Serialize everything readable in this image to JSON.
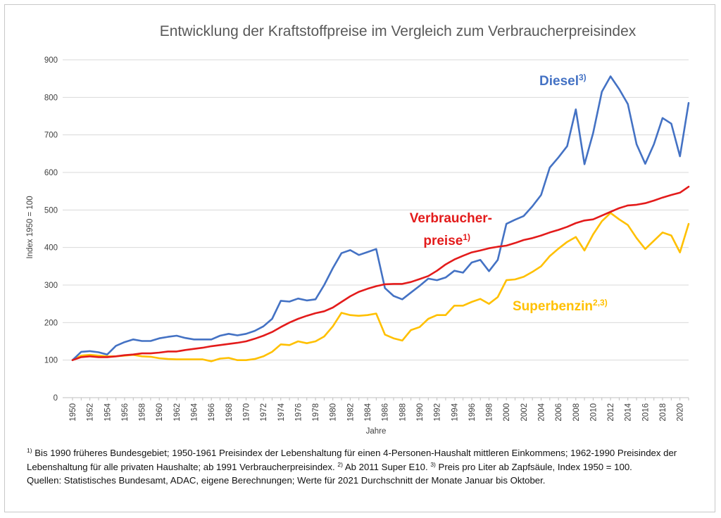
{
  "chart_data": {
    "type": "line",
    "title": "Entwicklung der Kraftstoffpreise im Vergleich zum Verbraucherpreisindex",
    "xlabel": "Jahre",
    "ylabel": "Index 1950 = 100",
    "ylim": [
      0,
      900
    ],
    "yticks": [
      0,
      100,
      200,
      300,
      400,
      500,
      600,
      700,
      800,
      900
    ],
    "xticks": [
      1950,
      1952,
      1954,
      1956,
      1958,
      1960,
      1962,
      1964,
      1966,
      1968,
      1970,
      1972,
      1974,
      1976,
      1978,
      1980,
      1982,
      1984,
      1986,
      1988,
      1990,
      1992,
      1994,
      1996,
      1998,
      2000,
      2002,
      2004,
      2006,
      2008,
      2010,
      2012,
      2014,
      2016,
      2018,
      2020
    ],
    "grid": true,
    "legend": "inline labels",
    "x": [
      1950,
      1951,
      1952,
      1953,
      1954,
      1955,
      1956,
      1957,
      1958,
      1959,
      1960,
      1961,
      1962,
      1963,
      1964,
      1965,
      1966,
      1967,
      1968,
      1969,
      1970,
      1971,
      1972,
      1973,
      1974,
      1975,
      1976,
      1977,
      1978,
      1979,
      1980,
      1981,
      1982,
      1983,
      1984,
      1985,
      1986,
      1987,
      1988,
      1989,
      1990,
      1991,
      1992,
      1993,
      1994,
      1995,
      1996,
      1997,
      1998,
      1999,
      2000,
      2001,
      2002,
      2003,
      2004,
      2005,
      2006,
      2007,
      2008,
      2009,
      2010,
      2011,
      2012,
      2013,
      2014,
      2015,
      2016,
      2017,
      2018,
      2019,
      2020,
      2021
    ],
    "series": [
      {
        "name": "Diesel",
        "sup": "3)",
        "color": "#4472C4",
        "values": [
          100,
          122,
          124,
          121,
          115,
          138,
          148,
          155,
          151,
          151,
          158,
          162,
          165,
          159,
          155,
          155,
          155,
          165,
          170,
          166,
          170,
          178,
          190,
          210,
          258,
          256,
          264,
          259,
          262,
          300,
          345,
          385,
          393,
          380,
          388,
          396,
          292,
          271,
          262,
          280,
          298,
          317,
          313,
          320,
          338,
          333,
          360,
          367,
          337,
          367,
          463,
          474,
          484,
          510,
          540,
          613,
          640,
          670,
          768,
          622,
          705,
          815,
          856,
          822,
          782,
          675,
          623,
          675,
          745,
          730,
          643,
          785
        ]
      },
      {
        "name": "Verbraucher-preise",
        "line1": "Verbraucher-",
        "line2": "preise",
        "sup": "1)",
        "color": "#E31B1B",
        "values": [
          100,
          108,
          110,
          108,
          108,
          110,
          113,
          115,
          118,
          118,
          120,
          123,
          123,
          127,
          130,
          133,
          137,
          140,
          143,
          146,
          150,
          157,
          165,
          175,
          188,
          200,
          210,
          218,
          225,
          230,
          240,
          255,
          270,
          282,
          290,
          297,
          302,
          303,
          303,
          308,
          316,
          324,
          338,
          355,
          368,
          378,
          387,
          392,
          398,
          402,
          405,
          412,
          420,
          425,
          432,
          440,
          447,
          455,
          465,
          472,
          475,
          485,
          495,
          505,
          512,
          514,
          518,
          525,
          533,
          540,
          546,
          562
        ]
      },
      {
        "name": "Superbenzin",
        "sup": "2,3)",
        "color": "#FFC000",
        "values": [
          100,
          112,
          114,
          112,
          110,
          110,
          112,
          114,
          110,
          109,
          105,
          103,
          102,
          102,
          102,
          102,
          97,
          104,
          106,
          100,
          100,
          103,
          110,
          122,
          142,
          140,
          150,
          145,
          150,
          163,
          190,
          226,
          220,
          218,
          220,
          224,
          168,
          158,
          152,
          180,
          188,
          210,
          220,
          220,
          245,
          245,
          255,
          263,
          250,
          268,
          313,
          315,
          322,
          335,
          350,
          377,
          397,
          415,
          428,
          392,
          435,
          470,
          492,
          475,
          460,
          425,
          396,
          418,
          440,
          432,
          387,
          463
        ]
      }
    ]
  },
  "footnotes": {
    "fn1_mark": "1)",
    "fn1_text": " Bis 1990 früheres Bundesgebiet; 1950-1961 Preisindex der Lebenshaltung für einen 4-Personen-Haushalt mittleren Einkommens; 1962-1990 Preisindex der Lebenshaltung  für alle privaten Haushalte; ab 1991 Verbraucherpreisindex. ",
    "fn2_mark": "2)",
    "fn2_text": " Ab 2011 Super E10. ",
    "fn3_mark": "3)",
    "fn3_text": " Preis pro Liter ab Zapfsäule, Index 1950 = 100.",
    "sources": "Quellen: Statistisches Bundesamt, ADAC, eigene Berechnungen; Werte für 2021 Durchschnitt der Monate Januar bis Oktober."
  }
}
